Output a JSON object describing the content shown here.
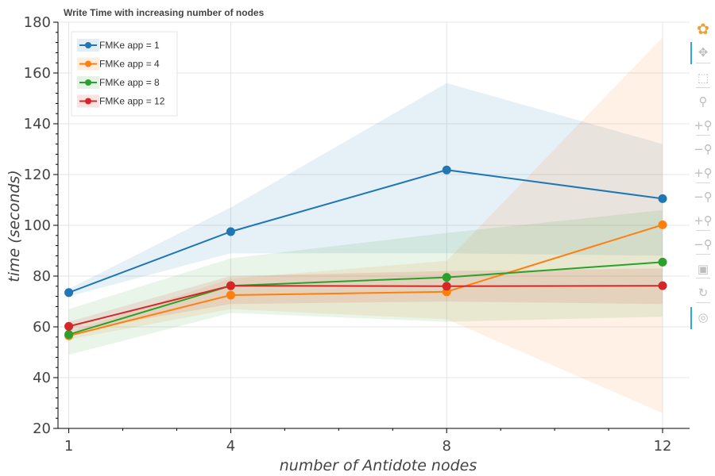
{
  "chart_data": {
    "type": "line",
    "title": "Write Time with increasing number of nodes",
    "xlabel": "number of Antidote nodes",
    "ylabel": "time (seconds)",
    "x": [
      1,
      4,
      8,
      12
    ],
    "x_tick_labels": [
      "1",
      "4",
      "8",
      "12"
    ],
    "xlim": [
      0.8,
      12.5
    ],
    "ylim": [
      20,
      180
    ],
    "y_ticks": [
      20,
      40,
      60,
      80,
      100,
      120,
      140,
      160,
      180
    ],
    "y_tick_labels": [
      "20",
      "40",
      "60",
      "80",
      "100",
      "120",
      "140",
      "160",
      "180"
    ],
    "grid": true,
    "legend_position": "top-left",
    "series": [
      {
        "name": "FMKe app = 1",
        "color": "#1f77b4",
        "values": [
          73.5,
          97.5,
          121.8,
          110.5
        ],
        "band_low": [
          72,
          89,
          89,
          88
        ],
        "band_high": [
          75,
          107,
          156,
          132
        ]
      },
      {
        "name": "FMKe app = 4",
        "color": "#ff7f0e",
        "values": [
          56.5,
          72.5,
          73.8,
          100.2
        ],
        "band_low": [
          55,
          67,
          63,
          26
        ],
        "band_high": [
          58,
          79,
          86,
          174
        ]
      },
      {
        "name": "FMKe app = 8",
        "color": "#2ca02c",
        "values": [
          57,
          76.2,
          79.5,
          85.5
        ],
        "band_low": [
          49,
          65.5,
          62,
          64
        ],
        "band_high": [
          67,
          87,
          97,
          106
        ]
      },
      {
        "name": "FMKe app = 12",
        "color": "#d62728",
        "values": [
          60.2,
          76.2,
          76,
          76.2
        ],
        "band_low": [
          58,
          69,
          70,
          69
        ],
        "band_high": [
          62,
          80,
          82,
          83
        ]
      }
    ]
  },
  "toolbar": {
    "tools": [
      {
        "icon": "bokeh-logo-icon",
        "glyph": "✿"
      },
      {
        "icon": "pan-icon",
        "glyph": "✥"
      },
      {
        "icon": "box-zoom-icon",
        "glyph": "⬚"
      },
      {
        "icon": "zoom-icon",
        "glyph": "⚲"
      },
      {
        "icon": "zoom-in-icon",
        "glyph": "+⚲"
      },
      {
        "icon": "zoom-out-icon",
        "glyph": "−⚲"
      },
      {
        "icon": "x-zoom-in-icon",
        "glyph": "+⚲"
      },
      {
        "icon": "x-zoom-out-icon",
        "glyph": "−⚲"
      },
      {
        "icon": "y-zoom-in-icon",
        "glyph": "+⚲"
      },
      {
        "icon": "y-zoom-out-icon",
        "glyph": "−⚲"
      },
      {
        "icon": "save-icon",
        "glyph": "▣"
      },
      {
        "icon": "reset-icon",
        "glyph": "↻"
      },
      {
        "icon": "hover-icon",
        "glyph": "◎"
      }
    ]
  }
}
